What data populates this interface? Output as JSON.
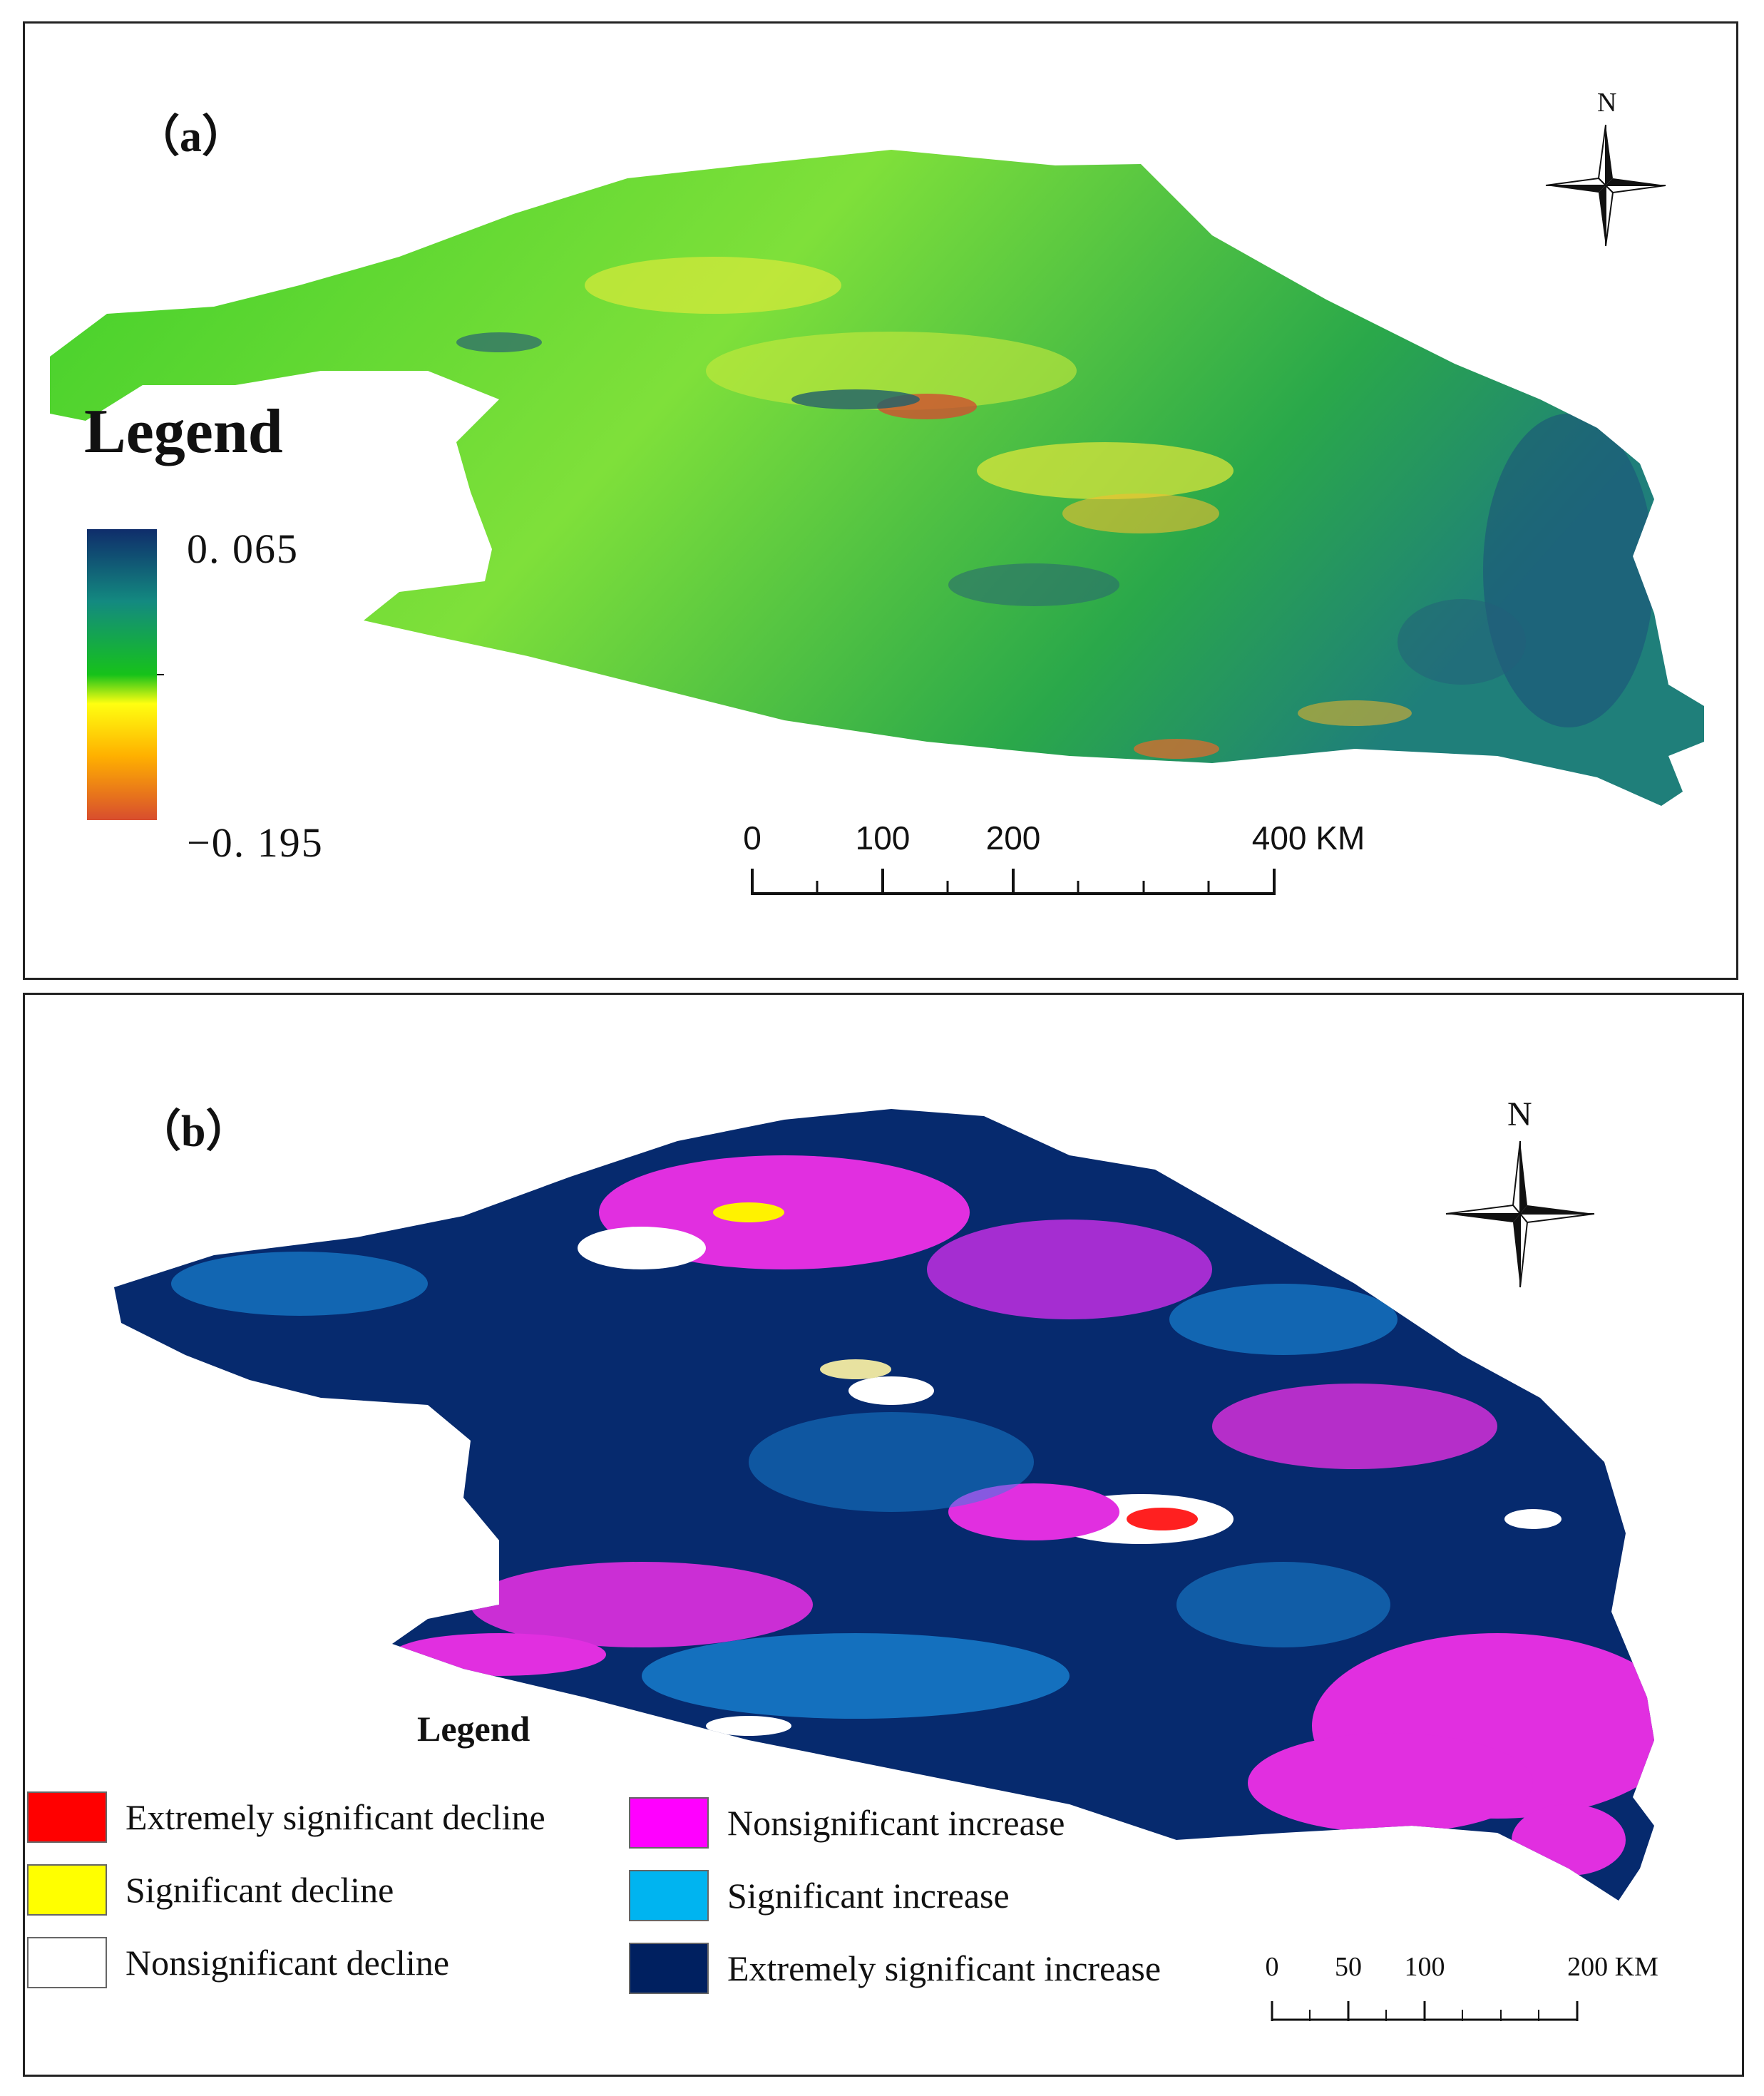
{
  "panel_a": {
    "label": "（a）",
    "north": "N",
    "legend": {
      "title": "Legend",
      "max": "0. 065",
      "min": "−0. 195",
      "colors": [
        "#0f2d6b",
        "#138a80",
        "#16c21a",
        "#ffff10",
        "#ffb000",
        "#d84d2e"
      ]
    },
    "scalebar": {
      "ticks": [
        "0",
        "100",
        "200",
        "400 KM"
      ],
      "values_km": [
        0,
        100,
        200,
        400
      ]
    }
  },
  "panel_b": {
    "label": "（b）",
    "north": "N",
    "legend": {
      "title": "Legend",
      "classes": [
        {
          "label": "Extremely significant decline",
          "color": "#ff0000"
        },
        {
          "label": "Significant decline",
          "color": "#ffff00"
        },
        {
          "label": "Nonsignificant decline",
          "color": "#ffffff"
        },
        {
          "label": "Nonsignificant increase",
          "color": "#ff00ff"
        },
        {
          "label": "Significant increase",
          "color": "#00b4f0"
        },
        {
          "label": "Extremely significant increase",
          "color": "#002060"
        }
      ]
    },
    "scalebar": {
      "ticks": [
        "0",
        "50",
        "100",
        "200 KM"
      ],
      "values_km": [
        0,
        50,
        100,
        200
      ]
    }
  }
}
